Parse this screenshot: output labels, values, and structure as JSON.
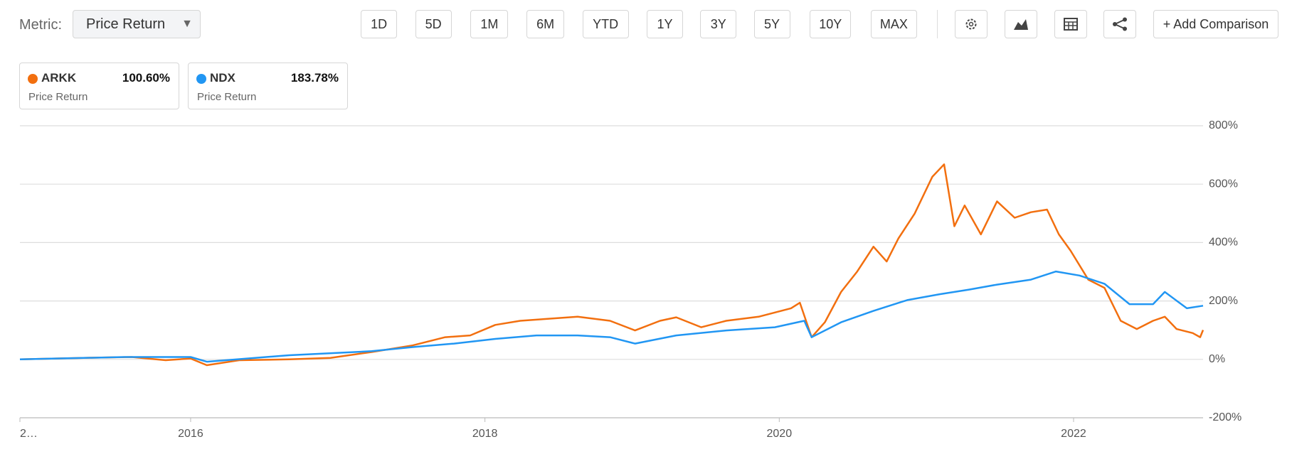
{
  "header": {
    "metric_label": "Metric:",
    "metric_value": "Price Return",
    "ranges": [
      "1D",
      "5D",
      "1M",
      "6M",
      "YTD",
      "1Y",
      "3Y",
      "5Y",
      "10Y",
      "MAX"
    ],
    "add_comparison": "+ Add Comparison"
  },
  "legend_cards": [
    {
      "name": "ARKK",
      "value": "100.60%",
      "metric": "Price Return"
    },
    {
      "name": "NDX",
      "value": "183.78%",
      "metric": "Price Return"
    }
  ],
  "chart_data": {
    "type": "line",
    "xlim": [
      2014.84,
      2022.88
    ],
    "xticks": [
      {
        "value": 2014.84,
        "label": "2…"
      },
      2016,
      2018,
      2020,
      2022
    ],
    "ylim": [
      -200,
      800
    ],
    "yticks": [
      {
        "value": -200,
        "label": "-200%"
      },
      {
        "value": 0,
        "label": "0%"
      },
      {
        "value": 200,
        "label": "200%"
      },
      {
        "value": 400,
        "label": "400%"
      },
      {
        "value": 600,
        "label": "600%"
      },
      {
        "value": 800,
        "label": "800%"
      }
    ],
    "grid": true,
    "series": [
      {
        "name": "ARKK",
        "color": "#f26f0f",
        "x": [
          2014.84,
          2015.27,
          2015.6,
          2015.83,
          2016.0,
          2016.11,
          2016.33,
          2016.67,
          2016.95,
          2017.23,
          2017.51,
          2017.73,
          2017.9,
          2018.07,
          2018.24,
          2018.4,
          2018.63,
          2018.85,
          2019.02,
          2019.19,
          2019.3,
          2019.47,
          2019.64,
          2019.86,
          2020.08,
          2020.14,
          2020.22,
          2020.31,
          2020.42,
          2020.53,
          2020.64,
          2020.73,
          2020.81,
          2020.92,
          2021.04,
          2021.12,
          2021.19,
          2021.26,
          2021.37,
          2021.48,
          2021.6,
          2021.71,
          2021.82,
          2021.9,
          2021.98,
          2022.1,
          2022.21,
          2022.32,
          2022.43,
          2022.54,
          2022.62,
          2022.7,
          2022.81,
          2022.86,
          2022.88
        ],
        "values": [
          0,
          5,
          8,
          -3,
          3,
          -20,
          -3,
          0,
          5,
          25,
          48,
          76,
          82,
          118,
          132,
          138,
          146,
          132,
          99,
          132,
          144,
          110,
          132,
          146,
          175,
          194,
          76,
          127,
          231,
          301,
          386,
          335,
          414,
          499,
          625,
          668,
          456,
          527,
          428,
          541,
          485,
          504,
          513,
          428,
          372,
          273,
          245,
          132,
          104,
          132,
          146,
          104,
          90,
          76,
          100.6
        ]
      },
      {
        "name": "NDX",
        "color": "#2196f3",
        "x": [
          2014.84,
          2015.55,
          2016.0,
          2016.11,
          2016.67,
          2017.23,
          2017.51,
          2017.79,
          2018.07,
          2018.35,
          2018.63,
          2018.85,
          2019.02,
          2019.3,
          2019.64,
          2019.97,
          2020.17,
          2020.22,
          2020.42,
          2020.64,
          2020.87,
          2021.09,
          2021.29,
          2021.48,
          2021.71,
          2021.88,
          2022.04,
          2022.21,
          2022.38,
          2022.54,
          2022.62,
          2022.77,
          2022.88
        ],
        "values": [
          0,
          8,
          8,
          -8,
          14,
          28,
          42,
          54,
          70,
          82,
          82,
          76,
          54,
          82,
          99,
          110,
          132,
          76,
          127,
          166,
          203,
          223,
          239,
          256,
          273,
          301,
          287,
          259,
          189,
          189,
          231,
          175,
          183.78
        ]
      }
    ]
  }
}
